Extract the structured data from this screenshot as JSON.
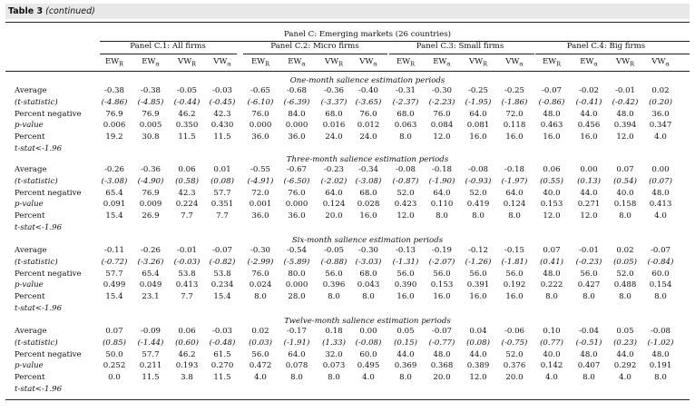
{
  "title": {
    "bold": "Table 3",
    "rest": "(continued)"
  },
  "panel_group_title": "Panel C: Emerging markets (26 countries)",
  "panels": [
    "Panel C.1: All firms",
    "Panel C.2: Micro firms",
    "Panel C.3: Small firms",
    "Panel C.4: Big firms"
  ],
  "column_headers": [
    "EWℝ",
    "EWα",
    "VWℝ",
    "VWα"
  ],
  "column_header_parts": [
    {
      "base": "EW",
      "sub": "R"
    },
    {
      "base": "EW",
      "sub": "α"
    },
    {
      "base": "VW",
      "sub": "R"
    },
    {
      "base": "VW",
      "sub": "α"
    }
  ],
  "row_labels": [
    "Average",
    "(t-statistic)",
    "Percent negative",
    "p-value",
    "Percent",
    "t-stat<-1.96"
  ],
  "sections": [
    {
      "title": "One-month salience estimation periods",
      "rows": [
        [
          "-0.38",
          "-0.38",
          "-0.05",
          "-0.03",
          "-0.65",
          "-0.68",
          "-0.36",
          "-0.40",
          "-0.31",
          "-0.30",
          "-0.25",
          "-0.25",
          "-0.07",
          "-0.02",
          "-0.01",
          "0.02"
        ],
        [
          "(-4.86)",
          "(-4.85)",
          "(-0.44)",
          "(-0.45)",
          "(-6.10)",
          "(-6.39)",
          "(-3.37)",
          "(-3.65)",
          "(-2.37)",
          "(-2.23)",
          "(-1.95)",
          "(-1.86)",
          "(-0.86)",
          "(-0.41)",
          "(-0.42)",
          "(0.20)"
        ],
        [
          "76.9",
          "76.9",
          "46.2",
          "42.3",
          "76.0",
          "84.0",
          "68.0",
          "76.0",
          "68.0",
          "76.0",
          "64.0",
          "72.0",
          "48.0",
          "44.0",
          "48.0",
          "36.0"
        ],
        [
          "0.006",
          "0.005",
          "0.350",
          "0.430",
          "0.000",
          "0.000",
          "0.016",
          "0.012",
          "0.063",
          "0.084",
          "0.081",
          "0.118",
          "0.463",
          "0.456",
          "0.394",
          "0.347"
        ],
        [
          "19.2",
          "30.8",
          "11.5",
          "11.5",
          "36.0",
          "36.0",
          "24.0",
          "24.0",
          "8.0",
          "12.0",
          "16.0",
          "16.0",
          "16.0",
          "16.0",
          "12.0",
          "4.0"
        ]
      ]
    },
    {
      "title": "Three-month salience estimation periods",
      "rows": [
        [
          "-0.26",
          "-0.36",
          "0.06",
          "0.01",
          "-0.55",
          "-0.67",
          "-0.23",
          "-0.34",
          "-0.08",
          "-0.18",
          "-0.08",
          "-0.18",
          "0.06",
          "0.00",
          "0.07",
          "0.00"
        ],
        [
          "(-3.08)",
          "(-4.90)",
          "(0.58)",
          "(0.08)",
          "(-4.91)",
          "(-6.50)",
          "(-2.02)",
          "(-3.08)",
          "(-0.87)",
          "(-1.90)",
          "(-0.93)",
          "(-1.97)",
          "(0.55)",
          "(0.13)",
          "(0.54)",
          "(0.07)"
        ],
        [
          "65.4",
          "76.9",
          "42.3",
          "57.7",
          "72.0",
          "76.0",
          "64.0",
          "68.0",
          "52.0",
          "64.0",
          "52.0",
          "64.0",
          "40.0",
          "44.0",
          "40.0",
          "48.0"
        ],
        [
          "0.091",
          "0.009",
          "0.224",
          "0.351",
          "0.001",
          "0.000",
          "0.124",
          "0.028",
          "0.423",
          "0.110",
          "0.419",
          "0.124",
          "0.153",
          "0.271",
          "0.158",
          "0.413"
        ],
        [
          "15.4",
          "26.9",
          "7.7",
          "7.7",
          "36.0",
          "36.0",
          "20.0",
          "16.0",
          "12.0",
          "8.0",
          "8.0",
          "8.0",
          "12.0",
          "12.0",
          "8.0",
          "4.0"
        ]
      ]
    },
    {
      "title": "Six-month salience estimation periods",
      "rows": [
        [
          "-0.11",
          "-0.26",
          "-0.01",
          "-0.07",
          "-0.30",
          "-0.54",
          "-0.05",
          "-0.30",
          "-0.13",
          "-0.19",
          "-0.12",
          "-0.15",
          "0.07",
          "-0.01",
          "0.02",
          "-0.07"
        ],
        [
          "(-0.72)",
          "(-3.26)",
          "(-0.03)",
          "(-0.82)",
          "(-2.99)",
          "(-5.89)",
          "(-0.88)",
          "(-3.03)",
          "(-1.31)",
          "(-2.07)",
          "(-1.26)",
          "(-1.81)",
          "(0.41)",
          "(-0.23)",
          "(0.05)",
          "(-0.84)"
        ],
        [
          "57.7",
          "65.4",
          "53.8",
          "53.8",
          "76.0",
          "80.0",
          "56.0",
          "68.0",
          "56.0",
          "56.0",
          "56.0",
          "56.0",
          "48.0",
          "56.0",
          "52.0",
          "60.0"
        ],
        [
          "0.499",
          "0.049",
          "0.413",
          "0.234",
          "0.024",
          "0.000",
          "0.396",
          "0.043",
          "0.390",
          "0.153",
          "0.391",
          "0.192",
          "0.222",
          "0.427",
          "0.488",
          "0.154"
        ],
        [
          "15.4",
          "23.1",
          "7.7",
          "15.4",
          "8.0",
          "28.0",
          "8.0",
          "8.0",
          "16.0",
          "16.0",
          "16.0",
          "16.0",
          "8.0",
          "8.0",
          "8.0",
          "8.0"
        ]
      ]
    },
    {
      "title": "Twelve-month salience estimation periods",
      "rows": [
        [
          "0.07",
          "-0.09",
          "0.06",
          "-0.03",
          "0.02",
          "-0.17",
          "0.18",
          "0.00",
          "0.05",
          "-0.07",
          "0.04",
          "-0.06",
          "0.10",
          "-0.04",
          "0.05",
          "-0.08"
        ],
        [
          "(0.85)",
          "(-1.44)",
          "(0.60)",
          "(-0.48)",
          "(0.03)",
          "(-1.91)",
          "(1.33)",
          "(-0.08)",
          "(0.15)",
          "(-0.77)",
          "(0.08)",
          "(-0.75)",
          "(0.77)",
          "(-0.51)",
          "(0.23)",
          "(-1.02)"
        ],
        [
          "50.0",
          "57.7",
          "46.2",
          "61.5",
          "56.0",
          "64.0",
          "32.0",
          "60.0",
          "44.0",
          "48.0",
          "44.0",
          "52.0",
          "40.0",
          "48.0",
          "44.0",
          "48.0"
        ],
        [
          "0.252",
          "0.211",
          "0.193",
          "0.270",
          "0.472",
          "0.078",
          "0.073",
          "0.495",
          "0.369",
          "0.368",
          "0.389",
          "0.376",
          "0.142",
          "0.407",
          "0.292",
          "0.191"
        ],
        [
          "0.0",
          "11.5",
          "3.8",
          "11.5",
          "4.0",
          "8.0",
          "8.0",
          "4.0",
          "8.0",
          "20.0",
          "12.0",
          "20.0",
          "4.0",
          "8.0",
          "4.0",
          "8.0"
        ]
      ]
    }
  ]
}
